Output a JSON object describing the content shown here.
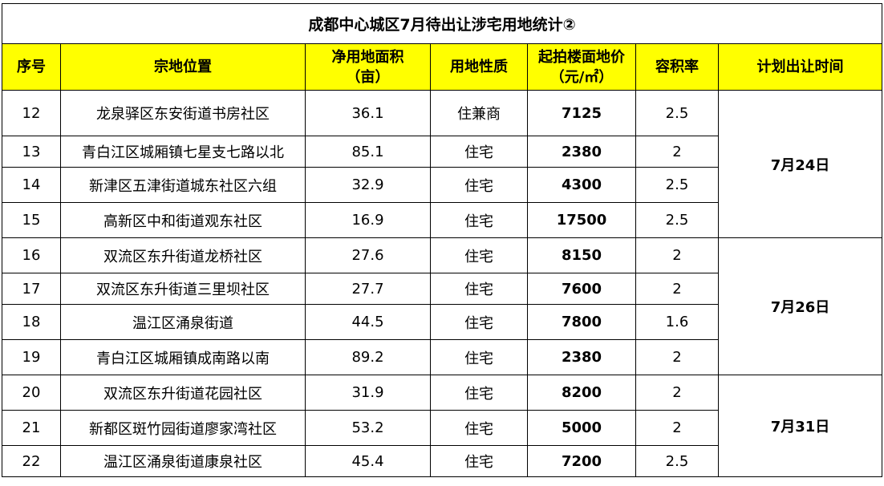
{
  "title": "成都中心城区7月待出让涉宅用地统计②",
  "headers": {
    "seq": "序号",
    "location": "宗地位置",
    "area_line1": "净用地面积",
    "area_line2": "（亩）",
    "usage": "用地性质",
    "price_line1": "起拍楼面地价",
    "price_line2": "（元/㎡）",
    "far": "容积率",
    "time": "计划出让时间"
  },
  "rows": [
    {
      "seq": "12",
      "location": "龙泉驿区东安街道书房社区",
      "area": "36.1",
      "usage": "住兼商",
      "price": "7125",
      "far": "2.5"
    },
    {
      "seq": "13",
      "location": "青白江区城厢镇七星支七路以北",
      "area": "85.1",
      "usage": "住宅",
      "price": "2380",
      "far": "2"
    },
    {
      "seq": "14",
      "location": "新津区五津街道城东社区六组",
      "area": "32.9",
      "usage": "住宅",
      "price": "4300",
      "far": "2.5"
    },
    {
      "seq": "15",
      "location": "高新区中和街道观东社区",
      "area": "16.9",
      "usage": "住宅",
      "price": "17500",
      "far": "2.5"
    },
    {
      "seq": "16",
      "location": "双流区东升街道龙桥社区",
      "area": "27.6",
      "usage": "住宅",
      "price": "8150",
      "far": "2"
    },
    {
      "seq": "17",
      "location": "双流区东升街道三里坝社区",
      "area": "27.7",
      "usage": "住宅",
      "price": "7600",
      "far": "2"
    },
    {
      "seq": "18",
      "location": "温江区涌泉街道",
      "area": "44.5",
      "usage": "住宅",
      "price": "7800",
      "far": "1.6"
    },
    {
      "seq": "19",
      "location": "青白江区城厢镇成南路以南",
      "area": "89.2",
      "usage": "住宅",
      "price": "2380",
      "far": "2"
    },
    {
      "seq": "20",
      "location": "双流区东升街道花园社区",
      "area": "31.9",
      "usage": "住宅",
      "price": "8200",
      "far": "2"
    },
    {
      "seq": "21",
      "location": "新都区斑竹园街道廖家湾社区",
      "area": "53.2",
      "usage": "住宅",
      "price": "5000",
      "far": "2"
    },
    {
      "seq": "22",
      "location": "温江区涌泉街道康泉社区",
      "area": "45.4",
      "usage": "住宅",
      "price": "7200",
      "far": "2.5"
    }
  ],
  "dates": [
    "7月24日",
    "7月26日",
    "7月31日"
  ],
  "colors": {
    "header_fill": "#ffff00",
    "border": "#000000"
  }
}
